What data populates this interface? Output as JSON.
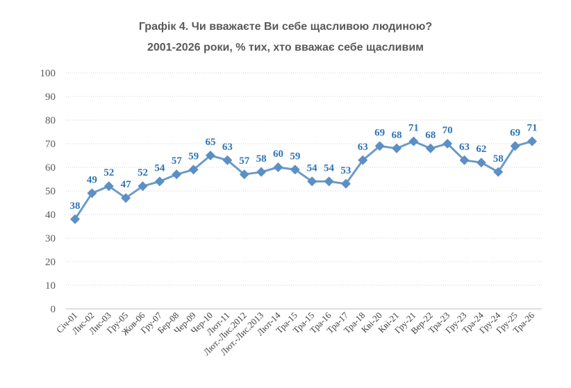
{
  "chart_data": {
    "type": "line",
    "title": "Графік 4. Чи вважаєте Ви себе щасливою людиною?",
    "subtitle": "2001-2026 роки, % тих, хто вважає себе щасливим",
    "xlabel": "",
    "ylabel": "",
    "ylim": [
      0,
      100
    ],
    "yticks": [
      "0",
      "10",
      "20",
      "30",
      "40",
      "50",
      "60",
      "70",
      "80",
      "90",
      "100"
    ],
    "grid": true,
    "line_color": "#6A9BC8",
    "marker_color": "#5B8FC5",
    "label_color": "#2E75B6",
    "categories": [
      "Січ-01",
      "Лис-02",
      "Лис-03",
      "Гру-05",
      "Жов-06",
      "Гру-07",
      "Бер-08",
      "Чер-09",
      "Чер-10",
      "Лют-11",
      "Лют.-Лис.2012",
      "Лют.-Лис.2013",
      "Лют-14",
      "Тра-15",
      "Тра-15",
      "Тра-16",
      "Тра-17",
      "Тра-18",
      "Кві-20",
      "Кві-21",
      "Гру-21",
      "Вер-22",
      "Тра-23",
      "Гру-23",
      "Тра-24",
      "Гру-24",
      "Гру-25",
      "Тра-26"
    ],
    "values": [
      38,
      49,
      52,
      47,
      52,
      54,
      57,
      59,
      65,
      63,
      57,
      58,
      60,
      59,
      54,
      54,
      53,
      63,
      69,
      68,
      71,
      68,
      70,
      63,
      62,
      58,
      69,
      71
    ]
  }
}
